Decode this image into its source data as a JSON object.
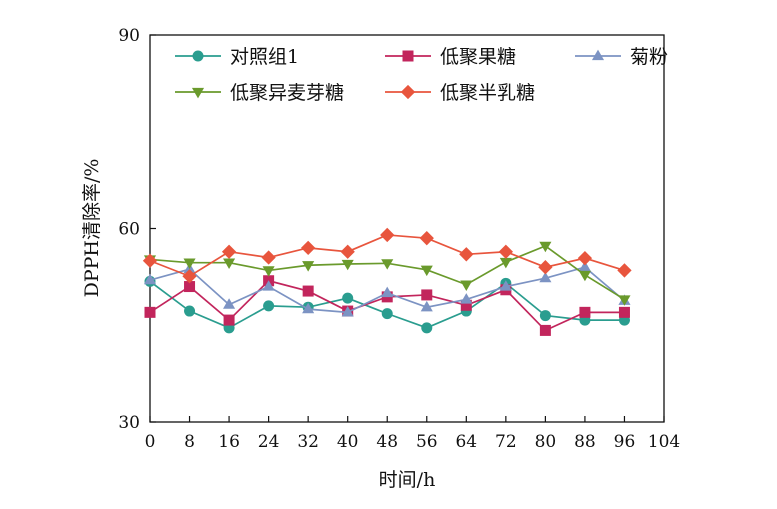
{
  "chart_data": {
    "type": "line",
    "xlabel": "时间/h",
    "ylabel": "DPPH清除率/%",
    "xlim": [
      0,
      104
    ],
    "ylim": [
      30,
      90
    ],
    "xticks": [
      0,
      8,
      16,
      24,
      32,
      40,
      48,
      56,
      64,
      72,
      80,
      88,
      96,
      104
    ],
    "yticks": [
      30,
      60,
      90
    ],
    "grid": false,
    "legend_position": "top",
    "x": [
      0,
      8,
      16,
      24,
      32,
      40,
      48,
      56,
      64,
      72,
      80,
      88,
      96
    ],
    "series": [
      {
        "name": "对照组1",
        "color": "#2a9d8f",
        "marker": "circle",
        "values": [
          51.8,
          47.2,
          44.6,
          48.0,
          47.8,
          49.2,
          46.8,
          44.6,
          47.2,
          51.5,
          46.5,
          45.8,
          45.8
        ]
      },
      {
        "name": "低聚果糖",
        "color": "#c2255c",
        "marker": "square",
        "values": [
          47.0,
          51.0,
          45.8,
          51.9,
          50.3,
          47.2,
          49.4,
          49.7,
          48.1,
          50.5,
          44.2,
          47.0,
          47.0
        ]
      },
      {
        "name": "菊粉",
        "color": "#7c93c3",
        "marker": "triangle-up",
        "values": [
          52.0,
          53.7,
          48.2,
          51.0,
          47.5,
          47.0,
          50.0,
          47.8,
          49.0,
          51.0,
          52.3,
          54.0,
          48.8
        ]
      },
      {
        "name": "低聚异麦芽糖",
        "color": "#6a9a2c",
        "marker": "triangle-down",
        "values": [
          55.2,
          54.7,
          54.7,
          53.5,
          54.3,
          54.5,
          54.6,
          53.6,
          51.3,
          54.8,
          57.3,
          52.8,
          49.0
        ]
      },
      {
        "name": "低聚半乳糖",
        "color": "#e8553d",
        "marker": "diamond",
        "values": [
          55.0,
          52.6,
          56.4,
          55.5,
          57.0,
          56.4,
          59.0,
          58.5,
          56.0,
          56.4,
          54.0,
          55.4,
          53.5
        ]
      }
    ]
  }
}
